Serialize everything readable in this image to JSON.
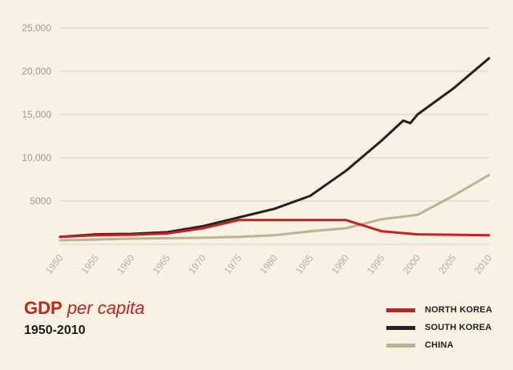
{
  "title": {
    "main_bold": "GDP",
    "main_italic": "per capita",
    "range": "1950-2010"
  },
  "colors": {
    "background": "#f8f1e4",
    "grid": "#cfd0bf",
    "accent": "#c8201c"
  },
  "chart_data": {
    "type": "line",
    "title": "GDP per capita",
    "subtitle": "1950-2010",
    "xlabel": "",
    "ylabel": "",
    "xlim": [
      1950,
      2010
    ],
    "ylim": [
      0,
      25000
    ],
    "x_ticks": [
      "1950",
      "1955",
      "1960",
      "1965",
      "1970",
      "1975",
      "1980",
      "1985",
      "1990",
      "1995",
      "2000",
      "2005",
      "2010"
    ],
    "y_ticks": [
      {
        "value": 5000,
        "label": "5000"
      },
      {
        "value": 10000,
        "label": "10,000"
      },
      {
        "value": 15000,
        "label": "15,000"
      },
      {
        "value": 20000,
        "label": "20,000"
      },
      {
        "value": 25000,
        "label": "25,000"
      }
    ],
    "grid": true,
    "legend_position": "bottom-right",
    "series": [
      {
        "name": "NORTH KOREA",
        "color": "#c8201c",
        "points": [
          [
            1950,
            850
          ],
          [
            1955,
            1050
          ],
          [
            1960,
            1100
          ],
          [
            1965,
            1250
          ],
          [
            1970,
            1850
          ],
          [
            1975,
            2800
          ],
          [
            1980,
            2800
          ],
          [
            1985,
            2800
          ],
          [
            1990,
            2800
          ],
          [
            1995,
            1500
          ],
          [
            2000,
            1150
          ],
          [
            2005,
            1100
          ],
          [
            2010,
            1050
          ]
        ]
      },
      {
        "name": "SOUTH KOREA",
        "color": "#232323",
        "points": [
          [
            1950,
            850
          ],
          [
            1955,
            1150
          ],
          [
            1960,
            1200
          ],
          [
            1965,
            1400
          ],
          [
            1970,
            2100
          ],
          [
            1975,
            3100
          ],
          [
            1980,
            4100
          ],
          [
            1985,
            5600
          ],
          [
            1990,
            8500
          ],
          [
            1995,
            12000
          ],
          [
            1998,
            14300
          ],
          [
            1999,
            14000
          ],
          [
            2000,
            15000
          ],
          [
            2005,
            18000
          ],
          [
            2010,
            21500
          ]
        ]
      },
      {
        "name": "CHINA",
        "color": "#bdb393",
        "points": [
          [
            1950,
            450
          ],
          [
            1955,
            550
          ],
          [
            1960,
            650
          ],
          [
            1965,
            700
          ],
          [
            1970,
            750
          ],
          [
            1975,
            850
          ],
          [
            1980,
            1050
          ],
          [
            1985,
            1500
          ],
          [
            1990,
            1850
          ],
          [
            1995,
            2900
          ],
          [
            2000,
            3400
          ],
          [
            2005,
            5600
          ],
          [
            2010,
            8000
          ]
        ]
      }
    ]
  }
}
